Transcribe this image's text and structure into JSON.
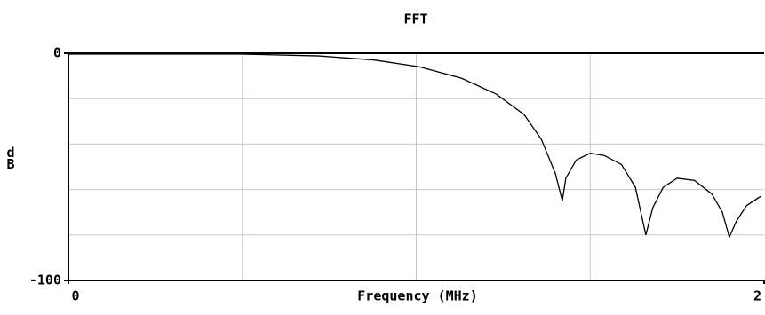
{
  "chart_data": {
    "type": "line",
    "title": "FFT",
    "xlabel": "Frequency (MHz)",
    "ylabel": "dB",
    "x": [
      0,
      0.5,
      0.72,
      0.88,
      1.01,
      1.13,
      1.23,
      1.31,
      1.36,
      1.4,
      1.42,
      1.43,
      1.46,
      1.5,
      1.54,
      1.59,
      1.63,
      1.66,
      1.68,
      1.71,
      1.75,
      1.8,
      1.85,
      1.88,
      1.9,
      1.92,
      1.95,
      1.99
    ],
    "series": [
      {
        "color": "#000000",
        "values": [
          -0.4,
          -0.4,
          -1.2,
          -3,
          -6,
          -11,
          -18,
          -27,
          -38,
          -53,
          -65,
          -55,
          -47,
          -44,
          -45,
          -49,
          -59,
          -80,
          -68,
          -59,
          -55,
          -56,
          -62,
          -70,
          -81,
          -74,
          -67,
          -63
        ]
      }
    ],
    "xlim": [
      0,
      2
    ],
    "ylim": [
      -100,
      0
    ],
    "xticks": [
      0,
      2
    ],
    "yticks": [
      -100,
      0
    ],
    "xgrid": [
      0.5,
      1,
      1.5
    ],
    "ygrid": [
      -80,
      -60,
      -40,
      -20
    ],
    "grid": true
  }
}
